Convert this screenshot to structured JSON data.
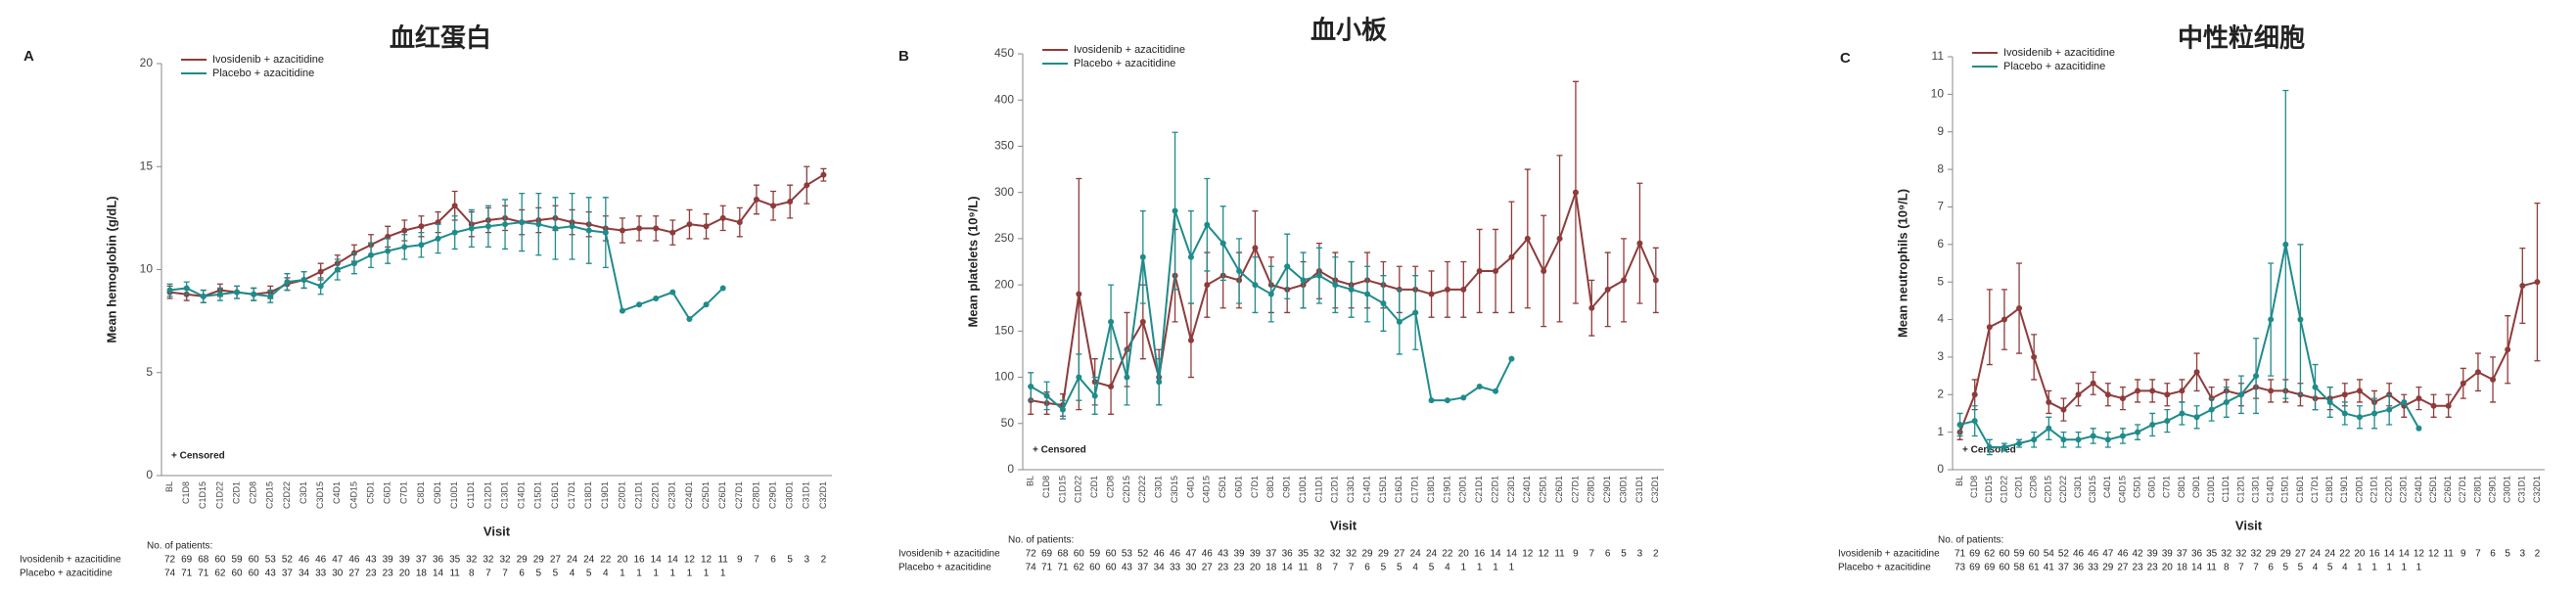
{
  "chart_data": [
    {
      "type": "line",
      "panel": "A",
      "title": "血红蛋白",
      "ylabel": "Mean hemoglobin (g/dL)",
      "xlabel": "Visit",
      "annotation": "+ Censored",
      "patients_label": "No. of patients:",
      "categories": [
        "BL",
        "C1D8",
        "C1D15",
        "C1D22",
        "C2D1",
        "C2D8",
        "C2D15",
        "C2D22",
        "C3D1",
        "C3D15",
        "C4D1",
        "C4D15",
        "C5D1",
        "C6D1",
        "C7D1",
        "C8D1",
        "C9D1",
        "C10D1",
        "C11D1",
        "C12D1",
        "C13D1",
        "C14D1",
        "C15D1",
        "C16D1",
        "C17D1",
        "C18D1",
        "C19D1",
        "C20D1",
        "C21D1",
        "C22D1",
        "C23D1",
        "C24D1",
        "C25D1",
        "C26D1",
        "C27D1",
        "C28D1",
        "C29D1",
        "C30D1",
        "C31D1",
        "C32D1"
      ],
      "ylim": [
        0,
        20
      ],
      "yticks": [
        0,
        5,
        10,
        15,
        20
      ],
      "series": [
        {
          "name": "Ivosidenib + azacitidine",
          "color": "#8e3b3b",
          "values": [
            8.9,
            8.8,
            8.7,
            9.0,
            8.9,
            8.8,
            8.9,
            9.3,
            9.5,
            9.9,
            10.3,
            10.8,
            11.2,
            11.6,
            11.9,
            12.1,
            12.3,
            13.1,
            12.2,
            12.4,
            12.5,
            12.3,
            12.4,
            12.5,
            12.3,
            12.2,
            12.0,
            11.9,
            12.0,
            12.0,
            11.8,
            12.2,
            12.1,
            12.5,
            12.3,
            13.4,
            13.1,
            13.3,
            14.1,
            14.6
          ],
          "errors": [
            0.3,
            0.3,
            0.3,
            0.3,
            0.3,
            0.3,
            0.3,
            0.3,
            0.4,
            0.4,
            0.4,
            0.4,
            0.5,
            0.5,
            0.5,
            0.5,
            0.5,
            0.7,
            0.6,
            0.6,
            0.6,
            0.6,
            0.6,
            0.6,
            0.6,
            0.6,
            0.6,
            0.6,
            0.6,
            0.6,
            0.6,
            0.7,
            0.6,
            0.6,
            0.7,
            0.7,
            0.7,
            0.8,
            0.9,
            0.3
          ],
          "n": [
            72,
            69,
            68,
            60,
            59,
            60,
            53,
            52,
            46,
            46,
            47,
            46,
            43,
            39,
            39,
            37,
            36,
            35,
            32,
            32,
            32,
            29,
            29,
            27,
            24,
            24,
            22,
            20,
            16,
            14,
            14,
            12,
            12,
            11,
            9,
            7,
            6,
            5,
            3,
            2
          ]
        },
        {
          "name": "Placebo + azacitidine",
          "color": "#1f8b8b",
          "values": [
            9.0,
            9.1,
            8.7,
            8.8,
            8.9,
            8.8,
            8.7,
            9.4,
            9.5,
            9.2,
            10.0,
            10.3,
            10.7,
            10.9,
            11.1,
            11.2,
            11.5,
            11.8,
            12.0,
            12.1,
            12.2,
            12.3,
            12.2,
            12.0,
            12.1,
            11.9,
            11.8,
            8.0,
            8.3,
            8.6,
            8.9,
            7.6,
            8.3,
            9.1,
            null,
            null,
            null,
            null,
            null,
            null
          ],
          "errors": [
            0.3,
            0.3,
            0.3,
            0.3,
            0.3,
            0.3,
            0.3,
            0.4,
            0.4,
            0.4,
            0.5,
            0.5,
            0.6,
            0.6,
            0.6,
            0.6,
            0.7,
            0.8,
            0.9,
            1.0,
            1.2,
            1.4,
            1.5,
            1.5,
            1.6,
            1.6,
            1.7,
            null,
            null,
            null,
            null,
            null,
            null,
            null,
            null,
            null,
            null,
            null,
            null,
            null
          ],
          "n": [
            74,
            71,
            71,
            62,
            60,
            60,
            43,
            37,
            34,
            33,
            30,
            27,
            23,
            23,
            20,
            18,
            14,
            11,
            8,
            7,
            7,
            6,
            5,
            5,
            4,
            5,
            4,
            1,
            1,
            1,
            1,
            1,
            1,
            1,
            null,
            null,
            null,
            null,
            null,
            null
          ]
        }
      ]
    },
    {
      "type": "line",
      "panel": "B",
      "title": "血小板",
      "ylabel": "Mean platelets (10⁹/L)",
      "xlabel": "Visit",
      "annotation": "+ Censored",
      "patients_label": "No. of patients:",
      "categories": [
        "BL",
        "C1D8",
        "C1D15",
        "C1D22",
        "C2D1",
        "C2D8",
        "C2D15",
        "C2D22",
        "C3D1",
        "C3D15",
        "C4D1",
        "C4D15",
        "C5D1",
        "C6D1",
        "C7D1",
        "C8D1",
        "C9D1",
        "C10D1",
        "C11D1",
        "C12D1",
        "C13D1",
        "C14D1",
        "C15D1",
        "C16D1",
        "C17D1",
        "C18D1",
        "C19D1",
        "C20D1",
        "C21D1",
        "C22D1",
        "C23D1",
        "C24D1",
        "C25D1",
        "C26D1",
        "C27D1",
        "C28D1",
        "C29D1",
        "C30D1",
        "C31D1",
        "C32D1"
      ],
      "ylim": [
        0,
        450
      ],
      "yticks": [
        0,
        50,
        100,
        150,
        200,
        250,
        300,
        350,
        400,
        450
      ],
      "series": [
        {
          "name": "Ivosidenib + azacitidine",
          "color": "#8e3b3b",
          "values": [
            75,
            72,
            70,
            190,
            95,
            90,
            130,
            160,
            100,
            210,
            140,
            200,
            210,
            205,
            240,
            200,
            195,
            200,
            215,
            205,
            200,
            205,
            200,
            195,
            195,
            190,
            195,
            195,
            215,
            215,
            230,
            250,
            215,
            250,
            300,
            175,
            195,
            205,
            245,
            205
          ],
          "errors": [
            15,
            12,
            12,
            125,
            25,
            30,
            40,
            40,
            30,
            50,
            40,
            35,
            35,
            30,
            40,
            30,
            25,
            25,
            30,
            30,
            25,
            30,
            25,
            25,
            25,
            25,
            30,
            30,
            45,
            45,
            60,
            75,
            60,
            90,
            120,
            30,
            40,
            45,
            65,
            35
          ],
          "n": [
            72,
            69,
            68,
            60,
            59,
            60,
            53,
            52,
            46,
            46,
            47,
            46,
            43,
            39,
            39,
            37,
            36,
            35,
            32,
            32,
            32,
            29,
            29,
            27,
            24,
            24,
            22,
            20,
            16,
            14,
            14,
            12,
            12,
            11,
            9,
            7,
            6,
            5,
            3,
            2
          ]
        },
        {
          "name": "Placebo + azacitidine",
          "color": "#1f8b8b",
          "values": [
            90,
            80,
            65,
            100,
            80,
            160,
            100,
            230,
            95,
            280,
            230,
            265,
            245,
            215,
            200,
            190,
            220,
            205,
            210,
            200,
            195,
            190,
            180,
            160,
            170,
            75,
            75,
            78,
            90,
            85,
            120,
            null,
            null,
            null,
            null,
            null,
            null,
            null,
            null,
            null
          ],
          "errors": [
            15,
            15,
            10,
            25,
            20,
            40,
            30,
            50,
            25,
            85,
            50,
            50,
            40,
            35,
            30,
            30,
            35,
            30,
            30,
            30,
            30,
            30,
            30,
            35,
            40,
            null,
            null,
            null,
            null,
            null,
            null,
            null,
            null,
            null,
            null,
            null,
            null,
            null,
            null,
            null
          ],
          "n": [
            74,
            71,
            71,
            62,
            60,
            60,
            43,
            37,
            34,
            33,
            30,
            27,
            23,
            23,
            20,
            18,
            14,
            11,
            8,
            7,
            7,
            6,
            5,
            5,
            4,
            5,
            4,
            1,
            1,
            1,
            1,
            null,
            null,
            null,
            null,
            null,
            null,
            null,
            null,
            null
          ]
        }
      ]
    },
    {
      "type": "line",
      "panel": "C",
      "title": "中性粒细胞",
      "ylabel": "Mean neutrophils (10⁹/L)",
      "xlabel": "Visit",
      "annotation": "+ Censored",
      "patients_label": "No. of patients:",
      "categories": [
        "BL",
        "C1D8",
        "C1D15",
        "C1D22",
        "C2D1",
        "C2D8",
        "C2D15",
        "C2D22",
        "C3D1",
        "C3D15",
        "C4D1",
        "C4D15",
        "C5D1",
        "C6D1",
        "C7D1",
        "C8D1",
        "C9D1",
        "C10D1",
        "C11D1",
        "C12D1",
        "C13D1",
        "C14D1",
        "C15D1",
        "C16D1",
        "C17D1",
        "C18D1",
        "C19D1",
        "C20D1",
        "C21D1",
        "C22D1",
        "C23D1",
        "C24D1",
        "C25D1",
        "C26D1",
        "C27D1",
        "C28D1",
        "C29D1",
        "C30D1",
        "C31D1",
        "C32D1"
      ],
      "ylim": [
        0,
        11
      ],
      "yticks": [
        0,
        1,
        2,
        3,
        4,
        5,
        6,
        7,
        8,
        9,
        10,
        11
      ],
      "series": [
        {
          "name": "Ivosidenib + azacitidine",
          "color": "#8e3b3b",
          "values": [
            1.0,
            2.0,
            3.8,
            4.0,
            4.3,
            3.0,
            1.8,
            1.6,
            2.0,
            2.3,
            2.0,
            1.9,
            2.1,
            2.1,
            2.0,
            2.1,
            2.6,
            1.9,
            2.1,
            2.0,
            2.2,
            2.1,
            2.1,
            2.0,
            1.9,
            1.9,
            2.0,
            2.1,
            1.8,
            2.0,
            1.7,
            1.9,
            1.7,
            1.7,
            2.3,
            2.6,
            2.4,
            3.2,
            4.9,
            5.0
          ],
          "errors": [
            0.2,
            0.4,
            1.0,
            0.8,
            1.2,
            0.6,
            0.3,
            0.3,
            0.3,
            0.3,
            0.3,
            0.3,
            0.3,
            0.3,
            0.3,
            0.3,
            0.5,
            0.3,
            0.3,
            0.3,
            0.3,
            0.3,
            0.3,
            0.3,
            0.3,
            0.3,
            0.3,
            0.3,
            0.3,
            0.3,
            0.3,
            0.3,
            0.3,
            0.3,
            0.4,
            0.5,
            0.6,
            0.9,
            1.0,
            2.1
          ],
          "n": [
            71,
            69,
            62,
            60,
            59,
            60,
            54,
            52,
            46,
            46,
            47,
            46,
            42,
            39,
            39,
            37,
            36,
            35,
            32,
            32,
            32,
            29,
            29,
            27,
            24,
            24,
            22,
            20,
            16,
            14,
            14,
            12,
            12,
            11,
            9,
            7,
            6,
            5,
            3,
            2
          ]
        },
        {
          "name": "Placebo + azacitidine",
          "color": "#1f8b8b",
          "values": [
            1.2,
            1.3,
            0.6,
            0.6,
            0.7,
            0.8,
            1.1,
            0.8,
            0.8,
            0.9,
            0.8,
            0.9,
            1.0,
            1.2,
            1.3,
            1.5,
            1.4,
            1.6,
            1.8,
            2.0,
            2.5,
            4.0,
            6.0,
            4.0,
            2.2,
            1.8,
            1.5,
            1.4,
            1.5,
            1.6,
            1.8,
            1.1,
            null,
            null,
            null,
            null,
            null,
            null,
            null,
            null
          ],
          "errors": [
            0.3,
            0.4,
            0.2,
            0.1,
            0.1,
            0.2,
            0.3,
            0.2,
            0.2,
            0.2,
            0.2,
            0.2,
            0.2,
            0.3,
            0.3,
            0.3,
            0.3,
            0.3,
            0.4,
            0.5,
            1.0,
            1.5,
            4.1,
            2.0,
            0.6,
            0.4,
            0.3,
            0.3,
            0.4,
            0.4,
            null,
            null,
            null,
            null,
            null,
            null,
            null,
            null,
            null,
            null
          ],
          "n": [
            73,
            69,
            69,
            60,
            58,
            61,
            41,
            37,
            36,
            33,
            29,
            27,
            23,
            23,
            20,
            18,
            14,
            11,
            8,
            7,
            7,
            6,
            5,
            5,
            4,
            5,
            4,
            1,
            1,
            1,
            1,
            1,
            null,
            null,
            null,
            null,
            null,
            null,
            null,
            null
          ]
        }
      ]
    }
  ]
}
